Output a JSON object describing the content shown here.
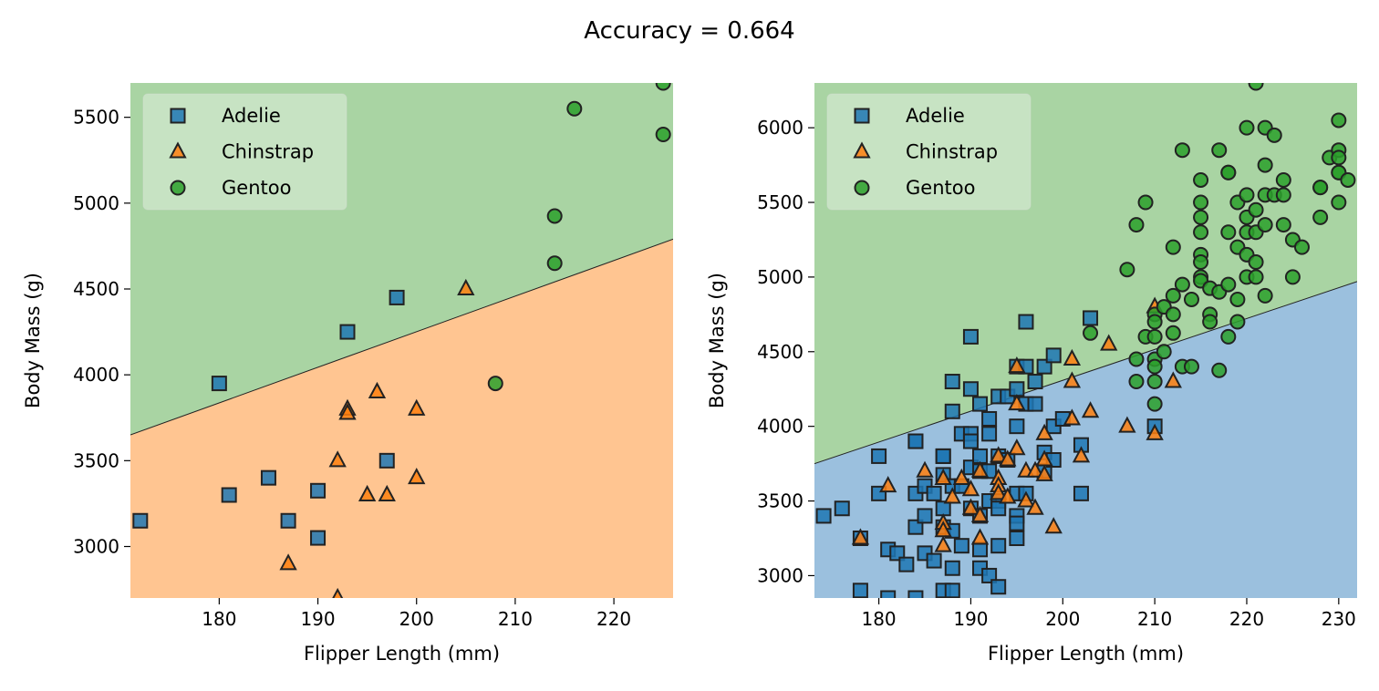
{
  "figure": {
    "suptitle": "Accuracy = 0.664"
  },
  "colors": {
    "Adelie": "#1f77b4",
    "Chinstrap": "#ff7f0e",
    "Gentoo": "#2ca02c",
    "region_Adelie": "#9bc0de",
    "region_Chinstrap": "#ffc591",
    "region_Gentoo": "#a9d4a3",
    "marker_edge": "#222222"
  },
  "chart_data": [
    {
      "type": "scatter",
      "xlabel": "Flipper Length (mm)",
      "ylabel": "Body Mass (g)",
      "xlim": [
        171,
        226
      ],
      "ylim": [
        2700,
        5700
      ],
      "xticks": [
        180,
        190,
        200,
        210,
        220
      ],
      "yticks": [
        3000,
        3500,
        4000,
        4500,
        5000,
        5500
      ],
      "legend": {
        "placement": "upper-left",
        "entries": [
          "Adelie",
          "Chinstrap",
          "Gentoo"
        ]
      },
      "decision_boundary": {
        "x": [
          171,
          226
        ],
        "y": [
          3650,
          4790
        ],
        "above": "Gentoo",
        "below": "Chinstrap"
      },
      "series": [
        {
          "name": "Adelie",
          "marker": "square",
          "points": [
            [
              180,
              3950
            ],
            [
              181,
              3300
            ],
            [
              185,
              3400
            ],
            [
              187,
              3150
            ],
            [
              190,
              3325
            ],
            [
              190,
              3050
            ],
            [
              193,
              4250
            ],
            [
              197,
              3500
            ],
            [
              198,
              4450
            ],
            [
              172,
              3150
            ]
          ]
        },
        {
          "name": "Chinstrap",
          "marker": "triangle",
          "points": [
            [
              187,
              2900
            ],
            [
              192,
              3500
            ],
            [
              192,
              2700
            ],
            [
              193,
              3800
            ],
            [
              193,
              3775
            ],
            [
              195,
              3300
            ],
            [
              196,
              3900
            ],
            [
              197,
              3300
            ],
            [
              200,
              3800
            ],
            [
              200,
              3400
            ],
            [
              205,
              4500
            ]
          ]
        },
        {
          "name": "Gentoo",
          "marker": "circle",
          "points": [
            [
              208,
              3950
            ],
            [
              214,
              4925
            ],
            [
              214,
              4650
            ],
            [
              216,
              5550
            ],
            [
              225,
              5700
            ],
            [
              225,
              5400
            ]
          ]
        }
      ]
    },
    {
      "type": "scatter",
      "xlabel": "Flipper Length (mm)",
      "ylabel": "Body Mass (g)",
      "xlim": [
        173,
        232
      ],
      "ylim": [
        2850,
        6300
      ],
      "xticks": [
        180,
        190,
        200,
        210,
        220,
        230
      ],
      "yticks": [
        3000,
        3500,
        4000,
        4500,
        5000,
        5500,
        6000
      ],
      "legend": {
        "placement": "upper-left",
        "entries": [
          "Adelie",
          "Chinstrap",
          "Gentoo"
        ]
      },
      "decision_boundary": {
        "x": [
          173,
          232
        ],
        "y": [
          3750,
          4970
        ],
        "above": "Gentoo",
        "below": "Adelie"
      },
      "series": [
        {
          "name": "Adelie",
          "marker": "square",
          "points": [
            [
              174,
              3400
            ],
            [
              176,
              3450
            ],
            [
              178,
              3250
            ],
            [
              178,
              2900
            ],
            [
              180,
              3800
            ],
            [
              180,
              3550
            ],
            [
              181,
              3175
            ],
            [
              181,
              2850
            ],
            [
              182,
              3150
            ],
            [
              183,
              3075
            ],
            [
              184,
              3900
            ],
            [
              184,
              3900
            ],
            [
              184,
              3550
            ],
            [
              184,
              3325
            ],
            [
              184,
              2850
            ],
            [
              185,
              3600
            ],
            [
              185,
              3400
            ],
            [
              185,
              3150
            ],
            [
              186,
              3550
            ],
            [
              186,
              3100
            ],
            [
              187,
              3800
            ],
            [
              187,
              3800
            ],
            [
              187,
              3675
            ],
            [
              187,
              3450
            ],
            [
              187,
              3325
            ],
            [
              187,
              2900
            ],
            [
              188,
              4300
            ],
            [
              188,
              4100
            ],
            [
              188,
              3600
            ],
            [
              188,
              3300
            ],
            [
              188,
              3050
            ],
            [
              188,
              2900
            ],
            [
              189,
              3950
            ],
            [
              189,
              3600
            ],
            [
              189,
              3200
            ],
            [
              190,
              4600
            ],
            [
              190,
              4250
            ],
            [
              190,
              3950
            ],
            [
              190,
              3900
            ],
            [
              190,
              3725
            ],
            [
              190,
              3450
            ],
            [
              191,
              4150
            ],
            [
              191,
              3800
            ],
            [
              191,
              3700
            ],
            [
              191,
              3400
            ],
            [
              191,
              3175
            ],
            [
              191,
              3050
            ],
            [
              192,
              4050
            ],
            [
              192,
              3950
            ],
            [
              192,
              3700
            ],
            [
              192,
              3500
            ],
            [
              192,
              3000
            ],
            [
              193,
              4200
            ],
            [
              193,
              3800
            ],
            [
              193,
              3500
            ],
            [
              193,
              3450
            ],
            [
              193,
              3200
            ],
            [
              193,
              2925
            ],
            [
              194,
              4200
            ],
            [
              194,
              3775
            ],
            [
              195,
              4400
            ],
            [
              195,
              4250
            ],
            [
              195,
              4000
            ],
            [
              195,
              3550
            ],
            [
              195,
              3400
            ],
            [
              195,
              3350
            ],
            [
              195,
              3250
            ],
            [
              196,
              4700
            ],
            [
              196,
              4400
            ],
            [
              196,
              4150
            ],
            [
              196,
              3550
            ],
            [
              197,
              4300
            ],
            [
              197,
              4150
            ],
            [
              198,
              4400
            ],
            [
              198,
              3825
            ],
            [
              198,
              3700
            ],
            [
              199,
              4475
            ],
            [
              199,
              4000
            ],
            [
              199,
              3775
            ],
            [
              200,
              4050
            ],
            [
              202,
              3875
            ],
            [
              202,
              3550
            ],
            [
              203,
              4725
            ],
            [
              210,
              4000
            ]
          ]
        },
        {
          "name": "Chinstrap",
          "marker": "triangle",
          "points": [
            [
              178,
              3250
            ],
            [
              181,
              3600
            ],
            [
              185,
              3700
            ],
            [
              187,
              3650
            ],
            [
              187,
              3350
            ],
            [
              187,
              3300
            ],
            [
              187,
              3200
            ],
            [
              188,
              3525
            ],
            [
              189,
              3650
            ],
            [
              190,
              3575
            ],
            [
              190,
              3450
            ],
            [
              191,
              3700
            ],
            [
              191,
              3400
            ],
            [
              191,
              3250
            ],
            [
              193,
              3800
            ],
            [
              193,
              3650
            ],
            [
              193,
              3600
            ],
            [
              193,
              3550
            ],
            [
              194,
              3775
            ],
            [
              194,
              3525
            ],
            [
              195,
              4400
            ],
            [
              195,
              4150
            ],
            [
              195,
              3850
            ],
            [
              196,
              3700
            ],
            [
              196,
              3500
            ],
            [
              197,
              3450
            ],
            [
              197,
              3700
            ],
            [
              198,
              3950
            ],
            [
              198,
              3775
            ],
            [
              198,
              3675
            ],
            [
              199,
              3325
            ],
            [
              201,
              4450
            ],
            [
              201,
              4300
            ],
            [
              201,
              4050
            ],
            [
              202,
              3800
            ],
            [
              203,
              4100
            ],
            [
              205,
              4550
            ],
            [
              207,
              4000
            ],
            [
              210,
              4800
            ],
            [
              210,
              3950
            ],
            [
              212,
              4300
            ]
          ]
        },
        {
          "name": "Gentoo",
          "marker": "circle",
          "points": [
            [
              203,
              4625
            ],
            [
              207,
              5050
            ],
            [
              208,
              5350
            ],
            [
              208,
              4450
            ],
            [
              208,
              4300
            ],
            [
              209,
              5500
            ],
            [
              209,
              4600
            ],
            [
              210,
              4750
            ],
            [
              210,
              4700
            ],
            [
              210,
              4600
            ],
            [
              210,
              4450
            ],
            [
              210,
              4400
            ],
            [
              210,
              4300
            ],
            [
              210,
              4150
            ],
            [
              211,
              4800
            ],
            [
              211,
              4500
            ],
            [
              212,
              5200
            ],
            [
              212,
              4875
            ],
            [
              212,
              4750
            ],
            [
              212,
              4625
            ],
            [
              213,
              5850
            ],
            [
              213,
              4950
            ],
            [
              213,
              4400
            ],
            [
              214,
              4850
            ],
            [
              214,
              4400
            ],
            [
              215,
              5650
            ],
            [
              215,
              5500
            ],
            [
              215,
              5400
            ],
            [
              215,
              5300
            ],
            [
              215,
              5150
            ],
            [
              215,
              5100
            ],
            [
              215,
              5000
            ],
            [
              215,
              4975
            ],
            [
              216,
              4925
            ],
            [
              216,
              4750
            ],
            [
              216,
              4700
            ],
            [
              217,
              5850
            ],
            [
              217,
              4900
            ],
            [
              217,
              4375
            ],
            [
              218,
              5700
            ],
            [
              218,
              5700
            ],
            [
              218,
              5300
            ],
            [
              218,
              4950
            ],
            [
              218,
              4600
            ],
            [
              219,
              5500
            ],
            [
              219,
              5200
            ],
            [
              219,
              4850
            ],
            [
              219,
              4700
            ],
            [
              220,
              6000
            ],
            [
              220,
              5550
            ],
            [
              220,
              5400
            ],
            [
              220,
              5300
            ],
            [
              220,
              5150
            ],
            [
              220,
              5000
            ],
            [
              221,
              6300
            ],
            [
              221,
              5450
            ],
            [
              221,
              5300
            ],
            [
              221,
              5100
            ],
            [
              221,
              5000
            ],
            [
              222,
              6000
            ],
            [
              222,
              5750
            ],
            [
              222,
              5550
            ],
            [
              222,
              5350
            ],
            [
              222,
              4875
            ],
            [
              223,
              5950
            ],
            [
              223,
              5550
            ],
            [
              224,
              5650
            ],
            [
              224,
              5550
            ],
            [
              224,
              5350
            ],
            [
              225,
              5250
            ],
            [
              225,
              5000
            ],
            [
              226,
              5200
            ],
            [
              228,
              5600
            ],
            [
              228,
              5600
            ],
            [
              228,
              5400
            ],
            [
              229,
              5800
            ],
            [
              230,
              6050
            ],
            [
              230,
              5850
            ],
            [
              230,
              5800
            ],
            [
              230,
              5700
            ],
            [
              230,
              5700
            ],
            [
              230,
              5500
            ],
            [
              231,
              5650
            ]
          ]
        }
      ]
    }
  ]
}
